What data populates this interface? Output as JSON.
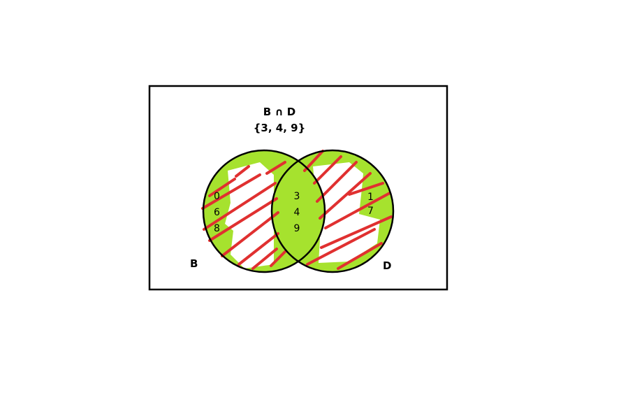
{
  "title": "B ∩ D",
  "intersection_set": "{3, 4, 9}",
  "sets": [
    {
      "label": "B",
      "elements": [
        "0",
        "6",
        "8"
      ]
    },
    {
      "label": "D",
      "elements": [
        "1",
        "7"
      ]
    }
  ],
  "intersection_elements": [
    "3",
    "4",
    "9"
  ],
  "colors": {
    "fill": "#a6e22e",
    "hatch": "#e03030",
    "outline": "#000000",
    "background": "#ffffff"
  }
}
